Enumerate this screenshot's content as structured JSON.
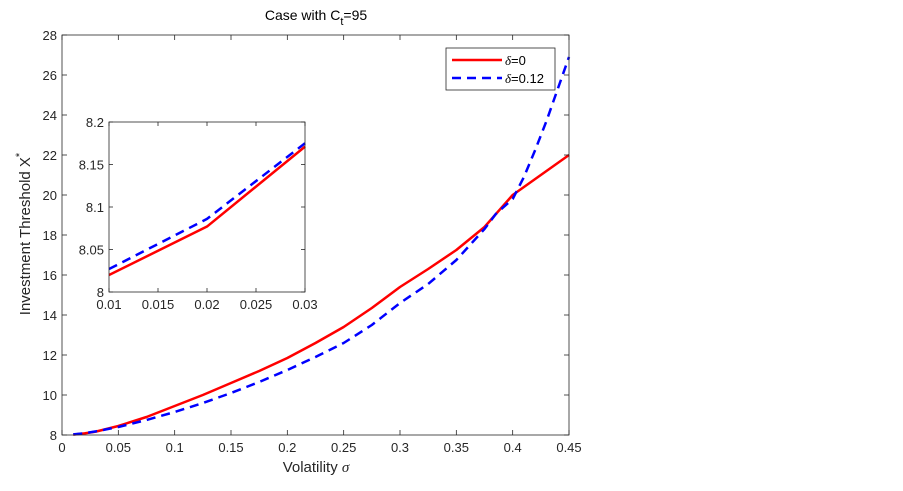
{
  "chart_data": [
    {
      "id": "main",
      "type": "line",
      "title": "Case with C",
      "title_subscript": "t",
      "title_suffix": "=95",
      "xlabel": "Volatility ",
      "xlabel_symbol": "σ",
      "ylabel": "Investment Threshold X",
      "ylabel_superscript": "*",
      "xlim": [
        0,
        0.45
      ],
      "ylim": [
        8,
        28
      ],
      "xticks": [
        0,
        0.05,
        0.1,
        0.15,
        0.2,
        0.25,
        0.3,
        0.35,
        0.4,
        0.45
      ],
      "xtick_labels": [
        "0",
        "0.05",
        "0.1",
        "0.15",
        "0.2",
        "0.25",
        "0.3",
        "0.35",
        "0.4",
        "0.45"
      ],
      "yticks": [
        8,
        10,
        12,
        14,
        16,
        18,
        20,
        22,
        24,
        26,
        28
      ],
      "ytick_labels": [
        "8",
        "10",
        "12",
        "14",
        "16",
        "18",
        "20",
        "22",
        "24",
        "26",
        "28"
      ],
      "grid": false,
      "legend_position": "top-right",
      "series": [
        {
          "name": "δ=0",
          "legend_symbol": "δ",
          "legend_text": "=0",
          "color": "#ff0000",
          "style": "solid",
          "x": [
            0.01,
            0.02,
            0.03,
            0.05,
            0.075,
            0.1,
            0.125,
            0.15,
            0.175,
            0.2,
            0.225,
            0.25,
            0.275,
            0.3,
            0.325,
            0.35,
            0.375,
            0.4,
            0.425,
            0.45
          ],
          "y": [
            8.02,
            8.08,
            8.17,
            8.45,
            8.9,
            9.45,
            10.0,
            10.6,
            11.2,
            11.85,
            12.6,
            13.4,
            14.35,
            15.4,
            16.3,
            17.25,
            18.4,
            20.0,
            21.0,
            22.0
          ]
        },
        {
          "name": "δ=0.12",
          "legend_symbol": "δ",
          "legend_text": "=0.12",
          "color": "#0000ff",
          "style": "dashed",
          "x": [
            0.01,
            0.02,
            0.03,
            0.05,
            0.075,
            0.1,
            0.125,
            0.15,
            0.175,
            0.2,
            0.225,
            0.25,
            0.275,
            0.3,
            0.325,
            0.35,
            0.375,
            0.385,
            0.4,
            0.41,
            0.42,
            0.43,
            0.44,
            0.45
          ],
          "y": [
            8.03,
            8.09,
            8.18,
            8.4,
            8.75,
            9.15,
            9.6,
            10.1,
            10.65,
            11.25,
            11.9,
            12.6,
            13.5,
            14.6,
            15.55,
            16.75,
            18.3,
            19.05,
            19.8,
            20.9,
            22.25,
            23.7,
            25.3,
            26.9
          ]
        }
      ]
    },
    {
      "id": "inset",
      "type": "line",
      "title": "",
      "xlabel": "",
      "ylabel": "",
      "xlim": [
        0.01,
        0.03
      ],
      "ylim": [
        8,
        8.2
      ],
      "xticks": [
        0.01,
        0.015,
        0.02,
        0.025,
        0.03
      ],
      "xtick_labels": [
        "0.01",
        "0.015",
        "0.02",
        "0.025",
        "0.03"
      ],
      "yticks": [
        8,
        8.05,
        8.1,
        8.15,
        8.2
      ],
      "ytick_labels": [
        "8",
        "8.05",
        "8.1",
        "8.15",
        "8.2"
      ],
      "grid": false,
      "series": [
        {
          "name": "δ=0",
          "color": "#ff0000",
          "style": "solid",
          "x": [
            0.01,
            0.02,
            0.03
          ],
          "y": [
            8.02,
            8.077,
            8.171
          ]
        },
        {
          "name": "δ=0.12",
          "color": "#0000ff",
          "style": "dashed",
          "x": [
            0.01,
            0.02,
            0.03
          ],
          "y": [
            8.027,
            8.086,
            8.175
          ]
        }
      ]
    }
  ]
}
